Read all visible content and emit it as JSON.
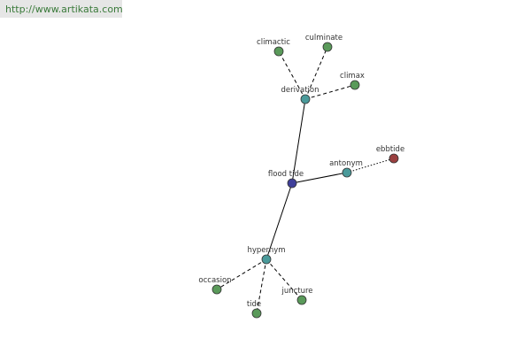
{
  "header": {
    "url": "http://www.artikata.com"
  },
  "nodes": [
    {
      "label": "flood tide"
    },
    {
      "label": "derivation"
    },
    {
      "label": "climactic"
    },
    {
      "label": "culminate"
    },
    {
      "label": "climax"
    },
    {
      "label": "antonym"
    },
    {
      "label": "ebbtide"
    },
    {
      "label": "hypernym"
    },
    {
      "label": "occasion"
    },
    {
      "label": "tide"
    },
    {
      "label": "juncture"
    }
  ]
}
